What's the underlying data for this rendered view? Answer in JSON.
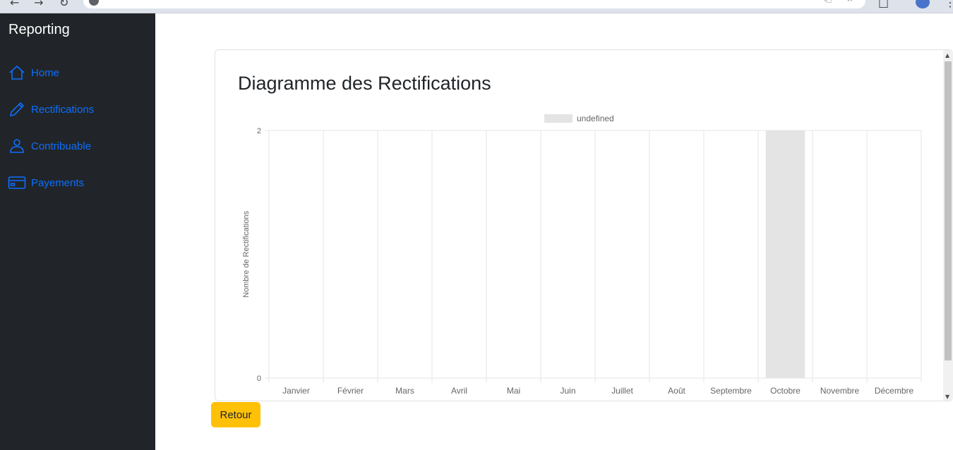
{
  "sidebar": {
    "brand": "Reporting",
    "items": [
      {
        "label": "Home",
        "icon": "house-icon"
      },
      {
        "label": "Rectifications",
        "icon": "pencil-icon"
      },
      {
        "label": "Contribuable",
        "icon": "person-icon"
      },
      {
        "label": "Payements",
        "icon": "credit-card-icon"
      }
    ],
    "link_color": "#0d6efd",
    "background": "#212529"
  },
  "card": {
    "title": "Diagramme des Rectifications"
  },
  "chart_data": {
    "type": "bar",
    "categories": [
      "Janvier",
      "Février",
      "Mars",
      "Avril",
      "Mai",
      "Juin",
      "Juillet",
      "Août",
      "Septembre",
      "Octobre",
      "Novembre",
      "Décembre"
    ],
    "series": [
      {
        "name": "undefined",
        "values": [
          0,
          0,
          0,
          0,
          0,
          0,
          0,
          0,
          0,
          2,
          0,
          0
        ],
        "color": "#e4e4e4"
      }
    ],
    "ylabel": "Nombre de Rectifications",
    "xlabel": "",
    "ylim": [
      0,
      2
    ],
    "yticks": [
      0,
      2
    ],
    "grid": true,
    "legend": "top"
  },
  "actions": {
    "back_label": "Retour",
    "back_color": "#ffc107"
  }
}
